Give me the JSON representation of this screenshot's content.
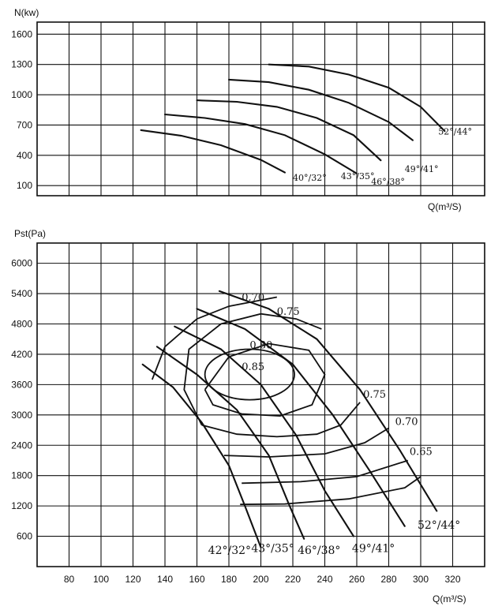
{
  "chart_data": [
    {
      "type": "line",
      "title": "",
      "ylabel": "N(kw)",
      "xlabel": "Q(m³/S)",
      "yticks": [
        100,
        400,
        700,
        1000,
        1300,
        1600
      ],
      "ylim": [
        0,
        1720
      ],
      "xlim": [
        60,
        340
      ],
      "grid": true,
      "series": [
        {
          "name": "40°/32°",
          "label_text": "40°/32°",
          "label_at": [
            220,
            150
          ],
          "points": [
            [
              125,
              650
            ],
            [
              150,
              595
            ],
            [
              175,
              500
            ],
            [
              200,
              355
            ],
            [
              215,
              230
            ]
          ]
        },
        {
          "name": "43°/35°",
          "label_text": "43°/35°",
          "label_at": [
            250,
            165
          ],
          "points": [
            [
              140,
              805
            ],
            [
              165,
              770
            ],
            [
              190,
              710
            ],
            [
              215,
              600
            ],
            [
              240,
              410
            ],
            [
              260,
              220
            ]
          ]
        },
        {
          "name": "46°/38°",
          "label_text": "46°/38°",
          "label_at": [
            269,
            110
          ],
          "points": [
            [
              160,
              945
            ],
            [
              185,
              930
            ],
            [
              210,
              880
            ],
            [
              235,
              770
            ],
            [
              258,
              600
            ],
            [
              275,
              350
            ]
          ]
        },
        {
          "name": "49°/41°",
          "label_text": "49°/41°",
          "label_at": [
            290,
            235
          ],
          "points": [
            [
              180,
              1150
            ],
            [
              205,
              1125
            ],
            [
              230,
              1050
            ],
            [
              255,
              920
            ],
            [
              280,
              730
            ],
            [
              295,
              550
            ]
          ]
        },
        {
          "name": "52°/44°",
          "label_text": "52°/44°",
          "label_at": [
            311,
            605
          ],
          "points": [
            [
              205,
              1300
            ],
            [
              230,
              1280
            ],
            [
              255,
              1200
            ],
            [
              280,
              1070
            ],
            [
              300,
              880
            ],
            [
              315,
              640
            ]
          ]
        }
      ]
    },
    {
      "type": "line",
      "title": "",
      "ylabel": "Pst(Pa)",
      "xlabel": "Q(m³/S)",
      "xticks": [
        80,
        100,
        120,
        140,
        160,
        180,
        200,
        220,
        240,
        260,
        280,
        300,
        320
      ],
      "yticks": [
        600,
        1200,
        1800,
        2400,
        3000,
        3600,
        4200,
        4800,
        5400,
        6000
      ],
      "xlim": [
        60,
        340
      ],
      "ylim": [
        0,
        6400
      ],
      "grid": true,
      "series": [
        {
          "name": "42°/32°",
          "label_text": "42°/32°",
          "label_at": [
            167,
            250
          ],
          "points": [
            [
              126,
              4000
            ],
            [
              145,
              3550
            ],
            [
              163,
              2850
            ],
            [
              180,
              2000
            ],
            [
              190,
              1200
            ],
            [
              200,
              380
            ]
          ]
        },
        {
          "name": "43°/35°",
          "label_text": "43°/35°",
          "label_at": [
            194,
            290
          ],
          "points": [
            [
              135,
              4350
            ],
            [
              160,
              3800
            ],
            [
              185,
              3100
            ],
            [
              205,
              2200
            ],
            [
              218,
              1200
            ],
            [
              227,
              550
            ]
          ]
        },
        {
          "name": "46°/38°",
          "label_text": "46°/38°",
          "label_at": [
            223,
            250
          ],
          "points": [
            [
              146,
              4750
            ],
            [
              175,
              4300
            ],
            [
              200,
              3600
            ],
            [
              222,
              2600
            ],
            [
              240,
              1500
            ],
            [
              258,
              600
            ]
          ]
        },
        {
          "name": "49°/41°",
          "label_text": "49°/41°",
          "label_at": [
            257,
            290
          ],
          "points": [
            [
              160,
              5100
            ],
            [
              190,
              4700
            ],
            [
              220,
              4000
            ],
            [
              245,
              3000
            ],
            [
              268,
              1900
            ],
            [
              290,
              800
            ]
          ]
        },
        {
          "name": "52°/44°",
          "label_text": "52°/44°",
          "label_at": [
            298,
            750
          ],
          "points": [
            [
              174,
              5450
            ],
            [
              205,
              5100
            ],
            [
              235,
              4500
            ],
            [
              262,
              3500
            ],
            [
              287,
              2300
            ],
            [
              310,
              1100
            ]
          ]
        }
      ],
      "efficiency_contours": [
        {
          "label": "0.85",
          "label_at": [
            188,
            3890
          ],
          "shape": "ellipse",
          "center": [
            193,
            3800
          ],
          "rx": 28,
          "ry": 500
        },
        {
          "label": "0.80",
          "label_at": [
            193,
            4320
          ],
          "points": [
            [
              165,
              3500
            ],
            [
              180,
              4150
            ],
            [
              205,
              4410
            ],
            [
              230,
              4280
            ],
            [
              240,
              3800
            ],
            [
              232,
              3200
            ],
            [
              212,
              2980
            ],
            [
              188,
              3020
            ],
            [
              170,
              3200
            ],
            [
              165,
              3500
            ]
          ]
        },
        {
          "label": "0.75",
          "label_at": [
            210,
            4980
          ],
          "points": [
            [
              163,
              2800
            ],
            [
              152,
              3500
            ],
            [
              155,
              4300
            ],
            [
              175,
              4800
            ],
            [
              200,
              5000
            ],
            [
              222,
              4900
            ],
            [
              238,
              4700
            ]
          ],
          "second_label": "0.75",
          "second_label_at": [
            264,
            3340
          ],
          "tail": [
            [
              262,
              3250
            ],
            [
              250,
              2800
            ],
            [
              235,
              2620
            ],
            [
              210,
              2570
            ],
            [
              185,
              2620
            ],
            [
              163,
              2800
            ]
          ]
        },
        {
          "label": "0.70",
          "label_at": [
            188,
            5260
          ],
          "points": [
            [
              132,
              3700
            ],
            [
              140,
              4350
            ],
            [
              160,
              4900
            ],
            [
              180,
              5150
            ],
            [
              210,
              5330
            ]
          ],
          "second_label": "0.70",
          "second_label_at": [
            284,
            2800
          ],
          "tail": [
            [
              280,
              2740
            ],
            [
              265,
              2450
            ],
            [
              240,
              2230
            ],
            [
              205,
              2170
            ],
            [
              177,
              2200
            ]
          ]
        },
        {
          "label": "0.65",
          "label_at": [
            293,
            2210
          ],
          "points": [
            [
              188,
              1650
            ],
            [
              225,
              1680
            ],
            [
              260,
              1780
            ],
            [
              292,
              2100
            ]
          ]
        },
        {
          "label": "",
          "label_at": [
            0,
            0
          ],
          "points": [
            [
              187,
              1230
            ],
            [
              215,
              1240
            ],
            [
              255,
              1340
            ],
            [
              290,
              1560
            ],
            [
              300,
              1780
            ]
          ]
        }
      ]
    }
  ]
}
